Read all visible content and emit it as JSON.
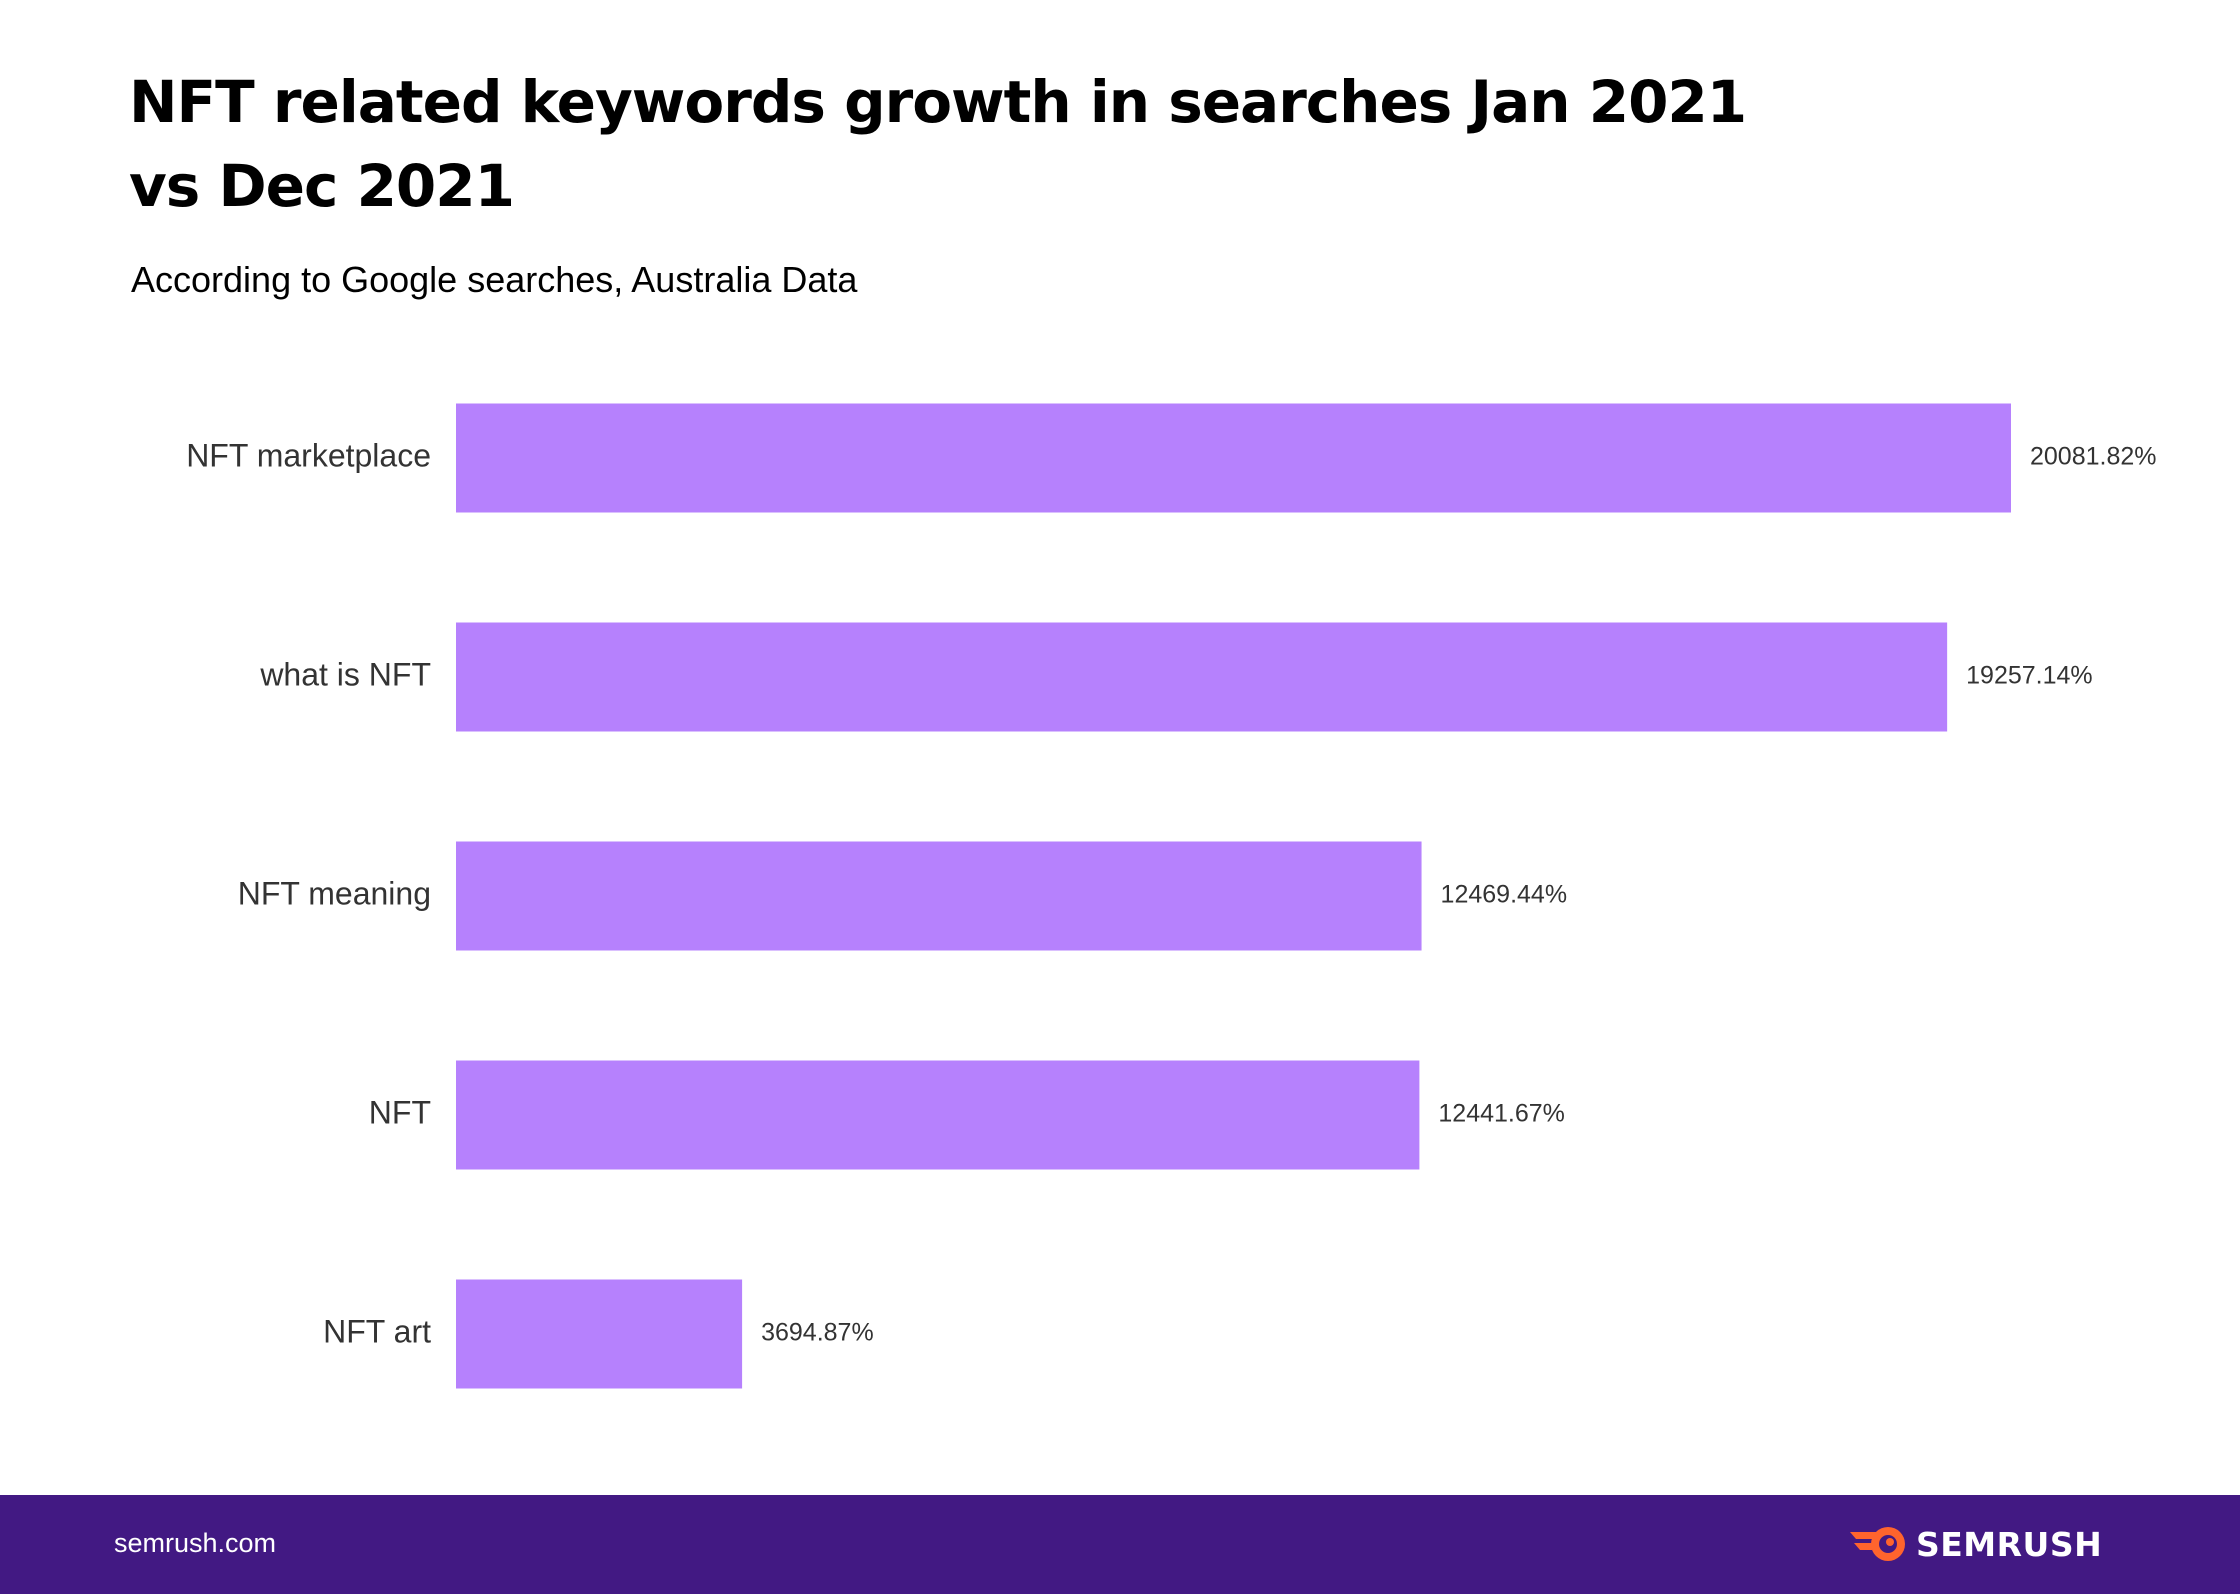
{
  "header": {
    "title": "NFT related keywords growth in searches Jan 2021 vs Dec 2021",
    "subtitle": "According to Google searches, Australia Data"
  },
  "chart_data": {
    "type": "bar",
    "orientation": "horizontal",
    "title": "NFT related keywords growth in searches Jan 2021 vs Dec 2021",
    "subtitle": "According to Google searches, Australia Data",
    "categories": [
      "NFT marketplace",
      "what is NFT",
      "NFT meaning",
      "NFT",
      "NFT art"
    ],
    "values": [
      20081.82,
      19257.14,
      12469.44,
      12441.67,
      3694.87
    ],
    "value_labels": [
      "20081.82%",
      "19257.14%",
      "12469.44%",
      "12441.67%",
      "3694.87%"
    ],
    "xlabel": "",
    "ylabel": "",
    "xlim": [
      0,
      20081.82
    ],
    "grid": false,
    "legend": "none",
    "bar_color": "#b681fd"
  },
  "footer": {
    "site": "semrush.com",
    "brand": "SEMRUSH",
    "brand_icon": "semrush-fireball-icon",
    "background": "#421983",
    "icon_color": "#ff642d"
  }
}
